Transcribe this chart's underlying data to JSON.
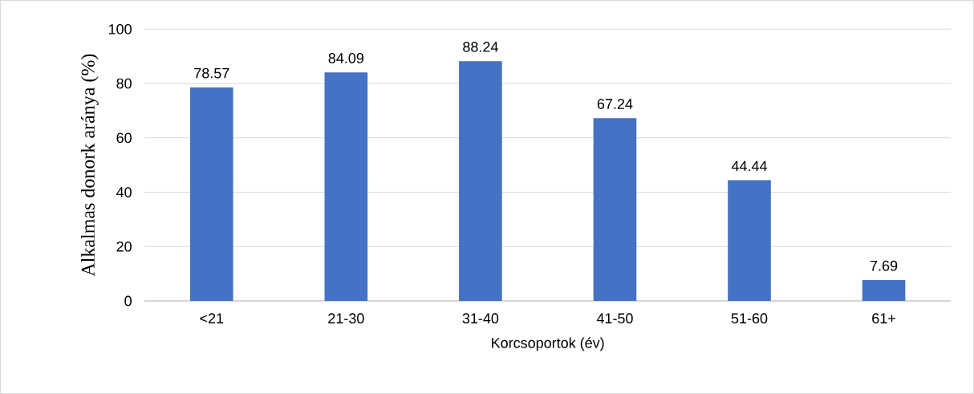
{
  "chart_data": {
    "type": "bar",
    "xlabel": "Korcsoportok (év)",
    "ylabel": "Alkalmas donork aránya (%)",
    "categories": [
      "<21",
      "21-30",
      "31-40",
      "41-50",
      "51-60",
      "61+"
    ],
    "values": [
      78.57,
      84.09,
      88.24,
      67.24,
      44.44,
      7.69
    ],
    "color": "#4472c4",
    "ylim": [
      0,
      100
    ],
    "yticks": [
      0,
      20,
      40,
      60,
      80,
      100
    ],
    "grid": "y",
    "data_labels": true
  }
}
